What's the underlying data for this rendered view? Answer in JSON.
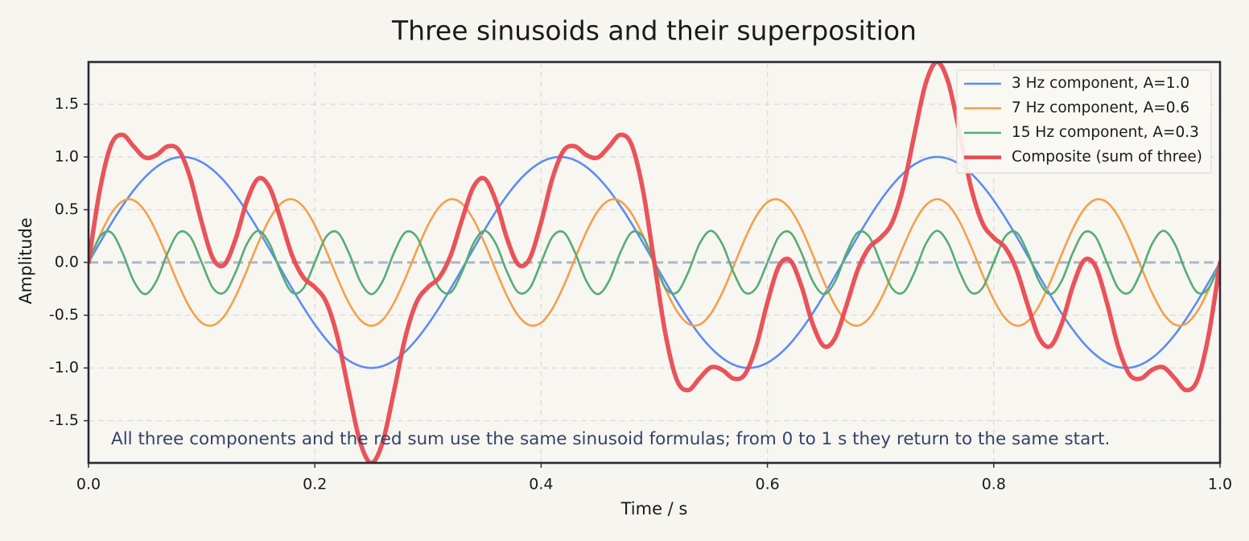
{
  "chart_data": {
    "type": "line",
    "title": "Three sinusoids and their superposition",
    "xlabel": "Time / s",
    "ylabel": "Amplitude",
    "annotation": "All three components and the red sum use the same sinusoid formulas; from 0 to 1 s they return to the same start.",
    "xlim": [
      0,
      1
    ],
    "ylim": [
      -1.9,
      1.9
    ],
    "xticks": [
      {
        "value": 0,
        "label": "0.0"
      },
      0.2,
      0.4,
      0.6,
      0.8,
      {
        "value": 1,
        "label": "1.0"
      }
    ],
    "yticks": [
      -1.5,
      {
        "value": -1,
        "label": "-1.0"
      },
      -0.5,
      {
        "value": 0,
        "label": "0.0"
      },
      0.5,
      {
        "value": 1,
        "label": "1.0"
      },
      1.5
    ],
    "grid": true,
    "legend": "upper right",
    "x": [
      0,
      0.01,
      0.02,
      0.03,
      0.04,
      0.05,
      0.06,
      0.07,
      0.08,
      0.09,
      0.1,
      0.11,
      0.12,
      0.13,
      0.14,
      0.15,
      0.16,
      0.17,
      0.18,
      0.19,
      0.2,
      0.21,
      0.22,
      0.23,
      0.24,
      0.25,
      0.26,
      0.27,
      0.28,
      0.29,
      0.3,
      0.31,
      0.32,
      0.33,
      0.34,
      0.35,
      0.36,
      0.37,
      0.38,
      0.39,
      0.4,
      0.41,
      0.42,
      0.43,
      0.44,
      0.45,
      0.46,
      0.47,
      0.48,
      0.49,
      0.5,
      0.51,
      0.52,
      0.53,
      0.54,
      0.55,
      0.56,
      0.57,
      0.58,
      0.59,
      0.6,
      0.61,
      0.62,
      0.63,
      0.64,
      0.65,
      0.66,
      0.67,
      0.68,
      0.69,
      0.7,
      0.71,
      0.72,
      0.73,
      0.74,
      0.75,
      0.76,
      0.77,
      0.78,
      0.79,
      0.8,
      0.81,
      0.82,
      0.83,
      0.84,
      0.85,
      0.86,
      0.87,
      0.88,
      0.89,
      0.9,
      0.91,
      0.92,
      0.93,
      0.94,
      0.95,
      0.96,
      0.97,
      0.98,
      0.99,
      1
    ],
    "series": [
      {
        "name": "3 Hz component, A=1.0",
        "color": "#5b8def",
        "values": [
          0,
          0.187,
          0.368,
          0.536,
          0.685,
          0.809,
          0.905,
          0.969,
          0.998,
          0.992,
          0.951,
          0.876,
          0.771,
          0.637,
          0.482,
          0.309,
          0.125,
          -0.063,
          -0.249,
          -0.426,
          -0.588,
          -0.729,
          -0.844,
          -0.93,
          -0.982,
          -1,
          -0.982,
          -0.93,
          -0.844,
          -0.729,
          -0.588,
          -0.426,
          -0.249,
          -0.063,
          0.125,
          0.309,
          0.482,
          0.637,
          0.771,
          0.876,
          0.951,
          0.992,
          0.998,
          0.969,
          0.905,
          0.809,
          0.685,
          0.536,
          0.368,
          0.187,
          0,
          -0.187,
          -0.368,
          -0.536,
          -0.685,
          -0.809,
          -0.905,
          -0.969,
          -0.998,
          -0.992,
          -0.951,
          -0.876,
          -0.771,
          -0.637,
          -0.482,
          -0.309,
          -0.125,
          0.063,
          0.249,
          0.426,
          0.588,
          0.729,
          0.844,
          0.93,
          0.982,
          1,
          0.982,
          0.93,
          0.844,
          0.729,
          0.588,
          0.426,
          0.249,
          0.063,
          -0.125,
          -0.309,
          -0.482,
          -0.637,
          -0.771,
          -0.876,
          -0.951,
          -0.992,
          -0.998,
          -0.969,
          -0.905,
          -0.809,
          -0.685,
          -0.536,
          -0.368,
          -0.187,
          0
        ]
      },
      {
        "name": "7 Hz component, A=0.6",
        "color": "#f5a04a",
        "values": [
          0,
          0.255,
          0.462,
          0.581,
          0.589,
          0.485,
          0.289,
          0.038,
          -0.221,
          -0.437,
          -0.571,
          -0.595,
          -0.507,
          -0.321,
          -0.075,
          0.185,
          0.411,
          0.558,
          0.599,
          0.526,
          0.353,
          0.112,
          -0.149,
          -0.382,
          -0.543,
          -0.6,
          -0.543,
          -0.382,
          -0.149,
          0.112,
          0.353,
          0.526,
          0.599,
          0.558,
          0.411,
          0.185,
          -0.075,
          -0.321,
          -0.507,
          -0.595,
          -0.571,
          -0.437,
          -0.221,
          0.038,
          0.289,
          0.485,
          0.589,
          0.581,
          0.462,
          0.255,
          0,
          -0.255,
          -0.462,
          -0.581,
          -0.589,
          -0.485,
          -0.289,
          -0.038,
          0.221,
          0.437,
          0.571,
          0.595,
          0.507,
          0.321,
          0.075,
          -0.185,
          -0.411,
          -0.558,
          -0.599,
          -0.526,
          -0.353,
          -0.112,
          0.149,
          0.382,
          0.543,
          0.6,
          0.543,
          0.382,
          0.149,
          -0.112,
          -0.353,
          -0.526,
          -0.599,
          -0.558,
          -0.411,
          -0.185,
          0.075,
          0.321,
          0.507,
          0.595,
          0.571,
          0.437,
          0.221,
          -0.038,
          -0.289,
          -0.485,
          -0.589,
          -0.581,
          -0.462,
          -0.255,
          0
        ]
      },
      {
        "name": "15 Hz component, A=0.3",
        "color": "#55ad74",
        "values": [
          0,
          0.243,
          0.285,
          0.093,
          -0.176,
          -0.3,
          -0.176,
          0.093,
          0.285,
          0.243,
          0,
          -0.243,
          -0.285,
          -0.093,
          0.176,
          0.3,
          0.176,
          -0.093,
          -0.285,
          -0.243,
          0,
          0.243,
          0.285,
          0.093,
          -0.176,
          -0.3,
          -0.176,
          0.093,
          0.285,
          0.243,
          0,
          -0.243,
          -0.285,
          -0.093,
          0.176,
          0.3,
          0.176,
          -0.093,
          -0.285,
          -0.243,
          0,
          0.243,
          0.285,
          0.093,
          -0.176,
          -0.3,
          -0.176,
          0.093,
          0.285,
          0.243,
          0,
          -0.243,
          -0.285,
          -0.093,
          0.176,
          0.3,
          0.176,
          -0.093,
          -0.285,
          -0.243,
          0,
          0.243,
          0.285,
          0.093,
          -0.176,
          -0.3,
          -0.176,
          0.093,
          0.285,
          0.243,
          0,
          -0.243,
          -0.285,
          -0.093,
          0.176,
          0.3,
          0.176,
          -0.093,
          -0.285,
          -0.243,
          0,
          0.243,
          0.285,
          0.093,
          -0.176,
          -0.3,
          -0.176,
          0.093,
          0.285,
          0.243,
          0,
          -0.243,
          -0.285,
          -0.093,
          0.176,
          0.3,
          0.176,
          -0.093,
          -0.285,
          -0.243,
          0
        ]
      },
      {
        "name": "Composite (sum of three)",
        "color": "#e84a50",
        "values": [
          0,
          0.685,
          1.115,
          1.21,
          1.098,
          0.994,
          1.018,
          1.1,
          1.062,
          0.798,
          0.38,
          0.038,
          -0.021,
          0.223,
          0.583,
          0.794,
          0.712,
          0.402,
          0.065,
          -0.143,
          -0.235,
          -0.374,
          -0.708,
          -1.219,
          -1.701,
          -1.9,
          -1.701,
          -1.219,
          -0.708,
          -0.374,
          -0.235,
          -0.143,
          0.065,
          0.402,
          0.712,
          0.794,
          0.583,
          0.223,
          -0.021,
          0.038,
          0.38,
          0.798,
          1.062,
          1.1,
          1.018,
          0.994,
          1.098,
          1.21,
          1.115,
          0.685,
          0,
          -0.685,
          -1.115,
          -1.21,
          -1.098,
          -0.994,
          -1.018,
          -1.1,
          -1.062,
          -0.798,
          -0.38,
          -0.038,
          0.021,
          -0.223,
          -0.583,
          -0.794,
          -0.712,
          -0.402,
          -0.065,
          0.143,
          0.235,
          0.374,
          0.708,
          1.219,
          1.701,
          1.9,
          1.701,
          1.219,
          0.708,
          0.374,
          0.235,
          0.143,
          -0.065,
          -0.402,
          -0.712,
          -0.794,
          -0.583,
          -0.223,
          0.021,
          -0.038,
          -0.38,
          -0.798,
          -1.062,
          -1.1,
          -1.018,
          -0.994,
          -1.098,
          -1.21,
          -1.115,
          -0.685,
          0
        ]
      }
    ]
  }
}
